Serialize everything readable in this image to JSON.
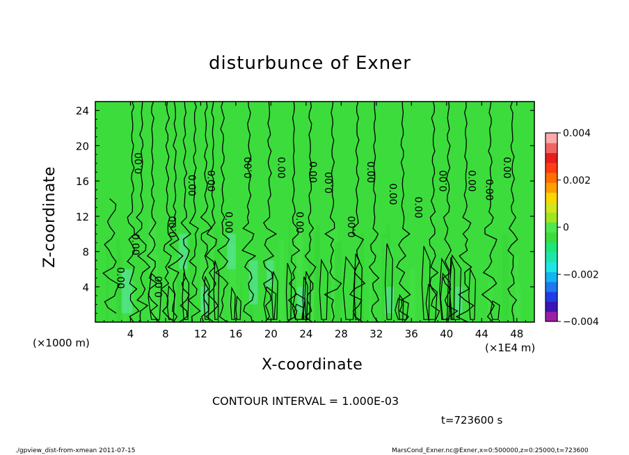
{
  "chart_data": {
    "type": "heatmap",
    "title": "disturbunce of Exner",
    "xlabel": "X-coordinate",
    "ylabel": "Z-coordinate",
    "x_unit_label": "(×1000 m)",
    "x_factor_label": "(×1E4 m)",
    "xlim": [
      0,
      50
    ],
    "ylim": [
      0,
      25
    ],
    "x_ticks": [
      "4",
      "8",
      "12",
      "16",
      "20",
      "24",
      "28",
      "32",
      "36",
      "40",
      "44",
      "48"
    ],
    "y_ticks": [
      "4",
      "8",
      "12",
      "16",
      "20",
      "24"
    ],
    "colorbar": {
      "range": [
        -0.004,
        0.004
      ],
      "tick_labels": [
        "0.004",
        "0.002",
        "0",
        "−0.002",
        "−0.004"
      ],
      "colors": [
        "#9b1fa6",
        "#3c14b4",
        "#1e3ce6",
        "#1e78f0",
        "#14b4f0",
        "#1ee6e6",
        "#1ee6aa",
        "#1ee678",
        "#3cdc3c",
        "#50e650",
        "#a0e61e",
        "#d2e61e",
        "#ffd700",
        "#ffa000",
        "#ff7000",
        "#ff3c14",
        "#e61e1e",
        "#f06464",
        "#ffaaaa"
      ]
    },
    "contour_interval": "CONTOUR INTERVAL = 1.000E-03",
    "contour_labels": [
      "0.00",
      "0.00",
      "0.00",
      "0.00",
      "0.00",
      "0.00",
      "0.00",
      "0.00",
      "0.00",
      "0.00",
      "0.00",
      "0.00",
      "0.00",
      "0.00",
      "0.00",
      "0.00",
      "0.00",
      "0.00",
      "0.00",
      "0.00",
      "0.00"
    ],
    "field_note": "values near 0 throughout (green); weak negative (cyan) patches near surface",
    "time_label": "t=723600 s"
  },
  "footer": {
    "left": "./gpview_dist-from-xmean  2011-07-15",
    "right": "MarsCond_Exner.nc@Exner,x=0:500000,z=0:25000,t=723600"
  },
  "colors": {
    "field_green": "#3cdc3c",
    "cyan_patch": "#5ee6b0",
    "contour": "#000000"
  }
}
